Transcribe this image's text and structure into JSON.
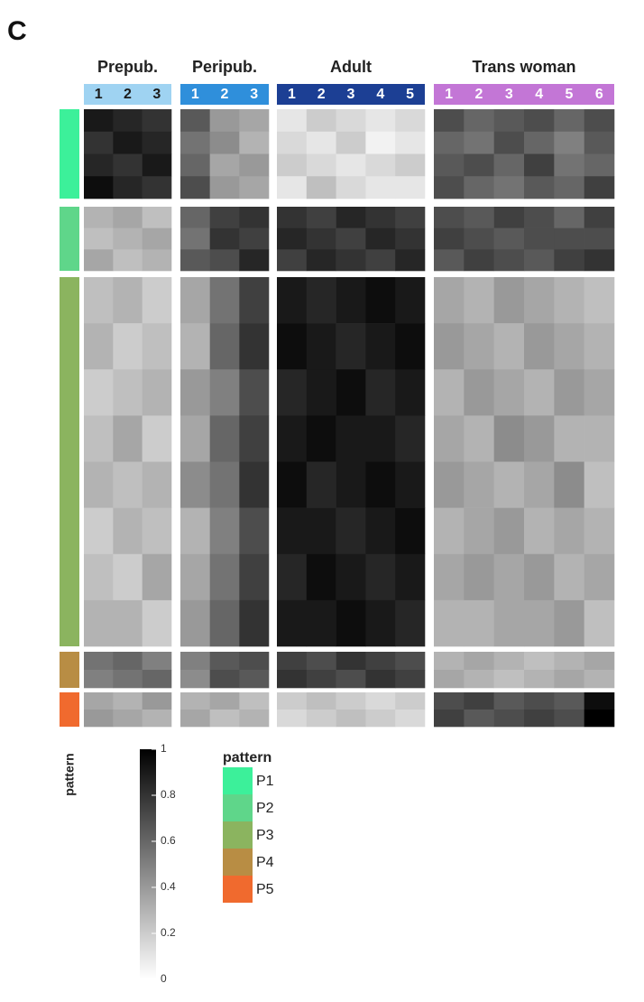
{
  "chart_data": {
    "type": "heatmap",
    "panel_label": "C",
    "groups": [
      {
        "name": "Prepub.",
        "color": "#9fd3f2",
        "text_color": "#1a1a1a",
        "samples": [
          "1",
          "2",
          "3"
        ]
      },
      {
        "name": "Peripub.",
        "color": "#2f8fdb",
        "text_color": "#ffffff",
        "samples": [
          "1",
          "2",
          "3"
        ]
      },
      {
        "name": "Adult",
        "color": "#1c3f94",
        "text_color": "#ffffff",
        "samples": [
          "1",
          "2",
          "3",
          "4",
          "5"
        ]
      },
      {
        "name": "Trans woman",
        "color": "#c376d6",
        "text_color": "#ffffff",
        "samples": [
          "1",
          "2",
          "3",
          "4",
          "5",
          "6"
        ]
      }
    ],
    "row_annotation_title": "pattern",
    "patterns": [
      {
        "name": "P1",
        "color": "#3cf09a",
        "values": [
          [
            0.9,
            0.85,
            0.8,
            0.65,
            0.4,
            0.35,
            0.1,
            0.2,
            0.15,
            0.1,
            0.15,
            0.7,
            0.6,
            0.65,
            0.7,
            0.6,
            0.7
          ],
          [
            0.8,
            0.9,
            0.85,
            0.55,
            0.45,
            0.3,
            0.15,
            0.1,
            0.2,
            0.05,
            0.1,
            0.6,
            0.55,
            0.7,
            0.6,
            0.5,
            0.65
          ],
          [
            0.85,
            0.8,
            0.9,
            0.6,
            0.35,
            0.4,
            0.2,
            0.15,
            0.1,
            0.15,
            0.2,
            0.65,
            0.7,
            0.6,
            0.75,
            0.55,
            0.6
          ],
          [
            0.95,
            0.85,
            0.8,
            0.7,
            0.4,
            0.35,
            0.1,
            0.25,
            0.15,
            0.1,
            0.1,
            0.7,
            0.6,
            0.55,
            0.65,
            0.6,
            0.75
          ]
        ]
      },
      {
        "name": "P2",
        "color": "#5fd68a",
        "values": [
          [
            0.3,
            0.35,
            0.25,
            0.6,
            0.75,
            0.8,
            0.8,
            0.75,
            0.85,
            0.8,
            0.75,
            0.7,
            0.65,
            0.75,
            0.7,
            0.6,
            0.75
          ],
          [
            0.25,
            0.3,
            0.35,
            0.55,
            0.8,
            0.75,
            0.85,
            0.8,
            0.75,
            0.85,
            0.8,
            0.75,
            0.7,
            0.65,
            0.7,
            0.7,
            0.7
          ],
          [
            0.35,
            0.25,
            0.3,
            0.65,
            0.7,
            0.85,
            0.75,
            0.85,
            0.8,
            0.75,
            0.85,
            0.65,
            0.75,
            0.7,
            0.65,
            0.75,
            0.8
          ]
        ]
      },
      {
        "name": "P3",
        "color": "#8bb45f",
        "values": [
          [
            0.25,
            0.3,
            0.2,
            0.35,
            0.55,
            0.75,
            0.9,
            0.85,
            0.9,
            0.95,
            0.9,
            0.35,
            0.3,
            0.4,
            0.35,
            0.3,
            0.25
          ],
          [
            0.3,
            0.2,
            0.25,
            0.3,
            0.6,
            0.8,
            0.95,
            0.9,
            0.85,
            0.9,
            0.95,
            0.4,
            0.35,
            0.3,
            0.4,
            0.35,
            0.3
          ],
          [
            0.2,
            0.25,
            0.3,
            0.4,
            0.5,
            0.7,
            0.85,
            0.9,
            0.95,
            0.85,
            0.9,
            0.3,
            0.4,
            0.35,
            0.3,
            0.4,
            0.35
          ],
          [
            0.25,
            0.35,
            0.2,
            0.35,
            0.6,
            0.75,
            0.9,
            0.95,
            0.9,
            0.9,
            0.85,
            0.35,
            0.3,
            0.45,
            0.4,
            0.3,
            0.3
          ],
          [
            0.3,
            0.25,
            0.3,
            0.45,
            0.55,
            0.8,
            0.95,
            0.85,
            0.9,
            0.95,
            0.9,
            0.4,
            0.35,
            0.3,
            0.35,
            0.45,
            0.25
          ],
          [
            0.2,
            0.3,
            0.25,
            0.3,
            0.5,
            0.7,
            0.9,
            0.9,
            0.85,
            0.9,
            0.95,
            0.3,
            0.35,
            0.4,
            0.3,
            0.35,
            0.3
          ],
          [
            0.25,
            0.2,
            0.35,
            0.35,
            0.55,
            0.75,
            0.85,
            0.95,
            0.9,
            0.85,
            0.9,
            0.35,
            0.4,
            0.35,
            0.4,
            0.3,
            0.35
          ],
          [
            0.3,
            0.3,
            0.2,
            0.4,
            0.6,
            0.8,
            0.9,
            0.9,
            0.95,
            0.9,
            0.85,
            0.3,
            0.3,
            0.35,
            0.35,
            0.4,
            0.25
          ]
        ]
      },
      {
        "name": "P4",
        "color": "#b88d44",
        "values": [
          [
            0.55,
            0.6,
            0.5,
            0.5,
            0.65,
            0.7,
            0.75,
            0.7,
            0.8,
            0.75,
            0.7,
            0.3,
            0.35,
            0.3,
            0.25,
            0.3,
            0.35
          ],
          [
            0.5,
            0.55,
            0.6,
            0.45,
            0.7,
            0.65,
            0.8,
            0.75,
            0.7,
            0.8,
            0.75,
            0.35,
            0.3,
            0.25,
            0.3,
            0.35,
            0.3
          ]
        ]
      },
      {
        "name": "P5",
        "color": "#f06a2e",
        "values": [
          [
            0.35,
            0.3,
            0.4,
            0.3,
            0.35,
            0.25,
            0.2,
            0.25,
            0.2,
            0.15,
            0.2,
            0.7,
            0.75,
            0.65,
            0.7,
            0.65,
            0.95
          ],
          [
            0.4,
            0.35,
            0.3,
            0.35,
            0.25,
            0.3,
            0.15,
            0.2,
            0.25,
            0.2,
            0.15,
            0.75,
            0.65,
            0.7,
            0.75,
            0.7,
            1
          ]
        ]
      }
    ],
    "colorbar": {
      "lim": [
        0,
        1
      ],
      "ticks": [
        0,
        0.2,
        0.4,
        0.6,
        0.8,
        1
      ]
    },
    "legend_title": "pattern"
  }
}
